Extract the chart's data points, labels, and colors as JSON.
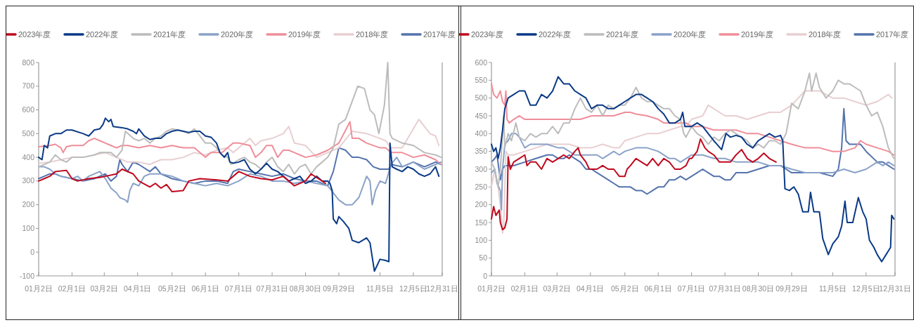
{
  "chart_data": [
    {
      "type": "line",
      "legend": "top",
      "grid": false,
      "marker": "none",
      "line_style": "solid",
      "xlim": [
        "--01-02",
        "--12-31"
      ],
      "xticks": [
        {
          "value": "--01-02",
          "label": "01月2日"
        },
        {
          "value": "--02-01",
          "label": "02月1日"
        },
        {
          "value": "--03-02",
          "label": "03月2日"
        },
        {
          "value": "--04-01",
          "label": "04月1日"
        },
        {
          "value": "--05-02",
          "label": "05月2日"
        },
        {
          "value": "--06-01",
          "label": "06月1日"
        },
        {
          "value": "--07-01",
          "label": "07月1日"
        },
        {
          "value": "--07-31",
          "label": "07月31日"
        },
        {
          "value": "--08-30",
          "label": "08月30日"
        },
        {
          "value": "--09-29",
          "label": "09月29日"
        },
        {
          "value": "--11-05",
          "label": "11月5日"
        },
        {
          "value": "--12-05",
          "label": "12月5日"
        },
        {
          "value": "--12-31",
          "label": "12月31日"
        }
      ],
      "ylim": [
        -100,
        800
      ],
      "yticks": [
        -100,
        0,
        100,
        200,
        300,
        400,
        500,
        600,
        700,
        800
      ],
      "series": [
        {
          "name": "2023年度",
          "color": "#c0081d",
          "x": [
            "--01-02",
            "--01-07",
            "--01-12",
            "--01-17",
            "--01-27",
            "--02-01",
            "--02-06",
            "--02-16",
            "--02-26",
            "--03-03",
            "--03-13",
            "--03-18",
            "--03-28",
            "--04-02",
            "--04-12",
            "--04-17",
            "--04-22",
            "--04-27",
            "--05-02",
            "--05-12",
            "--05-17",
            "--05-27",
            "--06-11",
            "--06-21",
            "--07-01",
            "--07-11",
            "--07-21",
            "--07-31",
            "--08-10",
            "--08-20",
            "--08-30",
            "--09-04",
            "--09-14",
            "--09-17"
          ],
          "values": [
            300,
            310,
            320,
            340,
            345,
            310,
            300,
            310,
            315,
            320,
            330,
            350,
            330,
            300,
            275,
            290,
            270,
            285,
            255,
            260,
            300,
            310,
            305,
            300,
            340,
            320,
            310,
            305,
            320,
            280,
            300,
            330,
            300,
            290
          ]
        },
        {
          "name": "2022年度",
          "color": "#0a3a86",
          "x": [
            "--01-02",
            "--01-05",
            "--01-07",
            "--01-10",
            "--01-12",
            "--01-17",
            "--01-22",
            "--01-27",
            "--02-01",
            "--02-11",
            "--02-16",
            "--02-21",
            "--02-26",
            "--03-01",
            "--03-03",
            "--03-06",
            "--03-08",
            "--03-10",
            "--03-18",
            "--03-23",
            "--03-28",
            "--03-31",
            "--04-02",
            "--04-07",
            "--04-12",
            "--04-17",
            "--04-22",
            "--04-27",
            "--05-02",
            "--05-07",
            "--05-12",
            "--05-17",
            "--05-22",
            "--05-27",
            "--06-01",
            "--06-06",
            "--06-11",
            "--06-14",
            "--06-18",
            "--06-21",
            "--06-23",
            "--06-26",
            "--07-01",
            "--07-06",
            "--07-11",
            "--07-16",
            "--07-21",
            "--07-26",
            "--07-31",
            "--08-05",
            "--08-10",
            "--08-15",
            "--08-20",
            "--08-25",
            "--08-30",
            "--09-04",
            "--09-09",
            "--09-14",
            "--09-19",
            "--09-21",
            "--09-23",
            "--09-24",
            "--09-27",
            "--09-29",
            "--10-03",
            "--10-08",
            "--10-11",
            "--10-17",
            "--10-24",
            "--10-27",
            "--10-31",
            "--11-05",
            "--11-10",
            "--11-13",
            "--11-14",
            "--11-16",
            "--11-20",
            "--11-25",
            "--11-30",
            "--12-05",
            "--12-10",
            "--12-15",
            "--12-20",
            "--12-25",
            "--12-28"
          ],
          "values": [
            400,
            390,
            450,
            440,
            490,
            500,
            500,
            515,
            515,
            500,
            490,
            515,
            520,
            540,
            565,
            550,
            560,
            530,
            525,
            520,
            510,
            500,
            520,
            490,
            475,
            480,
            480,
            500,
            510,
            515,
            510,
            505,
            510,
            510,
            490,
            485,
            460,
            420,
            400,
            420,
            380,
            375,
            380,
            390,
            350,
            330,
            350,
            375,
            350,
            340,
            320,
            300,
            310,
            320,
            290,
            300,
            320,
            300,
            300,
            290,
            260,
            140,
            120,
            150,
            130,
            100,
            50,
            40,
            60,
            40,
            -80,
            -30,
            -35,
            -40,
            460,
            360,
            350,
            340,
            360,
            350,
            330,
            320,
            330,
            360,
            320
          ]
        },
        {
          "name": "2021年度",
          "color": "#bcbcbc",
          "x": [
            "--01-02",
            "--01-12",
            "--01-17",
            "--01-22",
            "--01-27",
            "--02-01",
            "--02-11",
            "--02-21",
            "--02-26",
            "--03-08",
            "--03-13",
            "--03-18",
            "--03-21",
            "--03-28",
            "--04-02",
            "--04-07",
            "--04-12",
            "--04-17",
            "--04-22",
            "--04-27",
            "--05-02",
            "--05-12",
            "--05-17",
            "--05-22",
            "--05-27",
            "--06-01",
            "--06-06",
            "--06-11",
            "--06-16",
            "--06-21",
            "--06-24",
            "--07-01",
            "--07-06",
            "--07-11",
            "--07-16",
            "--07-21",
            "--07-26",
            "--07-31",
            "--08-05",
            "--08-10",
            "--08-15",
            "--08-20",
            "--08-25",
            "--08-30",
            "--09-04",
            "--09-09",
            "--09-14",
            "--09-19",
            "--09-24",
            "--09-29",
            "--10-05",
            "--10-16",
            "--10-22",
            "--10-27",
            "--10-31",
            "--11-04",
            "--11-09",
            "--11-12",
            "--11-14",
            "--11-16",
            "--11-25",
            "--12-05",
            "--12-15",
            "--12-25",
            "--12-30"
          ],
          "values": [
            360,
            380,
            410,
            390,
            380,
            400,
            400,
            410,
            420,
            420,
            400,
            430,
            510,
            480,
            470,
            480,
            460,
            480,
            490,
            510,
            520,
            510,
            500,
            520,
            490,
            460,
            460,
            440,
            410,
            400,
            370,
            390,
            400,
            380,
            370,
            350,
            380,
            400,
            360,
            340,
            370,
            330,
            360,
            370,
            330,
            360,
            380,
            400,
            440,
            540,
            560,
            700,
            690,
            600,
            580,
            500,
            620,
            800,
            500,
            480,
            460,
            450,
            420,
            410,
            400
          ]
        },
        {
          "name": "2020年度",
          "color": "#8aa2c8",
          "x": [
            "--01-02",
            "--01-07",
            "--01-12",
            "--01-17",
            "--01-22",
            "--01-27",
            "--02-01",
            "--02-06",
            "--02-11",
            "--02-16",
            "--02-26",
            "--03-03",
            "--03-08",
            "--03-13",
            "--03-16",
            "--03-21",
            "--03-23",
            "--03-25",
            "--03-28",
            "--04-02",
            "--04-07",
            "--04-12",
            "--04-22",
            "--05-02",
            "--05-12",
            "--05-22",
            "--06-01",
            "--06-11",
            "--06-21",
            "--07-01",
            "--07-11",
            "--07-21",
            "--07-31",
            "--08-10",
            "--08-20",
            "--08-30",
            "--09-09",
            "--09-19",
            "--09-24",
            "--09-29",
            "--10-05",
            "--10-11",
            "--10-17",
            "--10-24",
            "--10-27",
            "--10-29",
            "--11-01",
            "--11-05",
            "--11-10",
            "--11-15",
            "--11-20",
            "--11-25",
            "--12-05",
            "--12-15",
            "--12-25",
            "--12-30"
          ],
          "values": [
            360,
            360,
            350,
            330,
            320,
            315,
            310,
            320,
            300,
            320,
            340,
            310,
            270,
            250,
            230,
            220,
            210,
            260,
            290,
            280,
            320,
            330,
            330,
            320,
            300,
            290,
            280,
            290,
            280,
            300,
            330,
            320,
            300,
            300,
            290,
            300,
            290,
            280,
            250,
            220,
            200,
            200,
            230,
            320,
            300,
            200,
            260,
            300,
            290,
            370,
            400,
            360,
            380,
            350,
            370,
            380
          ]
        },
        {
          "name": "2019年度",
          "color": "#ef8e99",
          "x": [
            "--01-02",
            "--01-12",
            "--01-17",
            "--01-22",
            "--01-24",
            "--01-27",
            "--02-01",
            "--02-11",
            "--02-16",
            "--02-21",
            "--02-26",
            "--03-03",
            "--03-08",
            "--03-13",
            "--03-18",
            "--03-23",
            "--04-02",
            "--04-12",
            "--04-22",
            "--05-02",
            "--05-12",
            "--05-22",
            "--06-01",
            "--06-06",
            "--06-16",
            "--06-21",
            "--06-26",
            "--07-01",
            "--07-11",
            "--07-16",
            "--07-21",
            "--07-26",
            "--07-31",
            "--08-05",
            "--08-10",
            "--08-15",
            "--08-20",
            "--08-25",
            "--08-30",
            "--09-09",
            "--09-19",
            "--09-29",
            "--10-09",
            "--10-11",
            "--10-17",
            "--10-24",
            "--11-05",
            "--11-10",
            "--11-15",
            "--11-25",
            "--12-05",
            "--12-15",
            "--12-25",
            "--12-30"
          ],
          "values": [
            445,
            450,
            455,
            440,
            420,
            445,
            450,
            450,
            470,
            480,
            470,
            460,
            450,
            440,
            450,
            450,
            440,
            450,
            440,
            450,
            440,
            440,
            400,
            420,
            420,
            440,
            460,
            460,
            450,
            400,
            420,
            450,
            450,
            400,
            430,
            430,
            420,
            410,
            400,
            410,
            430,
            460,
            550,
            480,
            480,
            460,
            440,
            440,
            420,
            420,
            400,
            410,
            390,
            370
          ]
        },
        {
          "name": "2018年度",
          "color": "#e8cfd1",
          "x": [
            "--01-02",
            "--01-12",
            "--01-22",
            "--02-01",
            "--02-11",
            "--02-21",
            "--03-03",
            "--03-13",
            "--03-23",
            "--04-02",
            "--04-12",
            "--04-22",
            "--05-02",
            "--05-12",
            "--05-22",
            "--06-01",
            "--06-11",
            "--06-21",
            "--06-26",
            "--07-01",
            "--07-11",
            "--07-16",
            "--07-21",
            "--07-31",
            "--08-10",
            "--08-15",
            "--08-20",
            "--08-30",
            "--09-09",
            "--09-19",
            "--09-29",
            "--10-11",
            "--10-24",
            "--11-05",
            "--11-10",
            "--11-15",
            "--11-25",
            "--12-05",
            "--12-10",
            "--12-15",
            "--12-20",
            "--12-25",
            "--12-28"
          ],
          "values": [
            375,
            380,
            390,
            400,
            400,
            410,
            420,
            400,
            380,
            380,
            370,
            390,
            390,
            400,
            420,
            410,
            430,
            440,
            420,
            440,
            480,
            450,
            470,
            480,
            500,
            530,
            460,
            450,
            400,
            420,
            440,
            510,
            500,
            480,
            470,
            440,
            440,
            520,
            560,
            530,
            500,
            490,
            450
          ]
        },
        {
          "name": "2017年度",
          "color": "#5473ad",
          "x": [
            "--01-02",
            "--01-07",
            "--01-12",
            "--01-17",
            "--01-22",
            "--02-01",
            "--02-11",
            "--02-21",
            "--03-03",
            "--03-08",
            "--03-13",
            "--03-16",
            "--03-18",
            "--03-23",
            "--03-28",
            "--04-02",
            "--04-12",
            "--04-17",
            "--04-22",
            "--04-27",
            "--05-02",
            "--05-12",
            "--05-22",
            "--06-01",
            "--06-11",
            "--06-21",
            "--06-26",
            "--07-01",
            "--07-11",
            "--07-21",
            "--07-31",
            "--08-10",
            "--08-20",
            "--08-30",
            "--09-09",
            "--09-19",
            "--09-24",
            "--09-27",
            "--09-29",
            "--10-05",
            "--10-11",
            "--10-17",
            "--10-24",
            "--10-30",
            "--11-05",
            "--11-13",
            "--11-15",
            "--11-25",
            "--12-05",
            "--12-15",
            "--12-25",
            "--12-30"
          ],
          "values": [
            310,
            320,
            330,
            330,
            320,
            310,
            300,
            310,
            330,
            300,
            320,
            390,
            370,
            340,
            380,
            370,
            340,
            360,
            330,
            320,
            310,
            300,
            290,
            300,
            300,
            290,
            340,
            350,
            340,
            330,
            320,
            330,
            310,
            300,
            300,
            280,
            340,
            400,
            440,
            430,
            400,
            400,
            390,
            360,
            350,
            350,
            370,
            360,
            380,
            360,
            380,
            370
          ]
        }
      ]
    },
    {
      "type": "line",
      "legend": "top",
      "grid": false,
      "marker": "none",
      "line_style": "solid",
      "xlim": [
        "--01-02",
        "--12-31"
      ],
      "xticks": [
        {
          "value": "--01-02",
          "label": "01月2日"
        },
        {
          "value": "--02-01",
          "label": "02月1日"
        },
        {
          "value": "--03-02",
          "label": "03月2日"
        },
        {
          "value": "--04-01",
          "label": "04月1日"
        },
        {
          "value": "--05-02",
          "label": "05月2日"
        },
        {
          "value": "--06-01",
          "label": "06月1日"
        },
        {
          "value": "--07-01",
          "label": "07月1日"
        },
        {
          "value": "--07-31",
          "label": "07月31日"
        },
        {
          "value": "--08-30",
          "label": "08月30日"
        },
        {
          "value": "--09-29",
          "label": "09月29日"
        },
        {
          "value": "--11-05",
          "label": "11月5日"
        },
        {
          "value": "--12-05",
          "label": "12月5日"
        },
        {
          "value": "--12-31",
          "label": "12月31日"
        }
      ],
      "ylim": [
        0,
        600
      ],
      "yticks": [
        0,
        50,
        100,
        150,
        200,
        250,
        300,
        350,
        400,
        450,
        500,
        550,
        600
      ],
      "series": [
        {
          "name": "2023年度",
          "color": "#c0081d",
          "x": [
            "--01-02",
            "--01-04",
            "--01-06",
            "--01-09",
            "--01-10",
            "--01-12",
            "--01-14",
            "--01-16",
            "--01-17",
            "--01-19",
            "--01-22",
            "--01-27",
            "--02-01",
            "--02-03",
            "--02-06",
            "--02-11",
            "--02-16",
            "--02-21",
            "--02-26",
            "--03-03",
            "--03-08",
            "--03-13",
            "--03-18",
            "--03-21",
            "--03-23",
            "--03-28",
            "--03-31",
            "--04-07",
            "--04-12",
            "--04-17",
            "--04-22",
            "--04-27",
            "--05-02",
            "--05-04",
            "--05-07",
            "--05-12",
            "--05-17",
            "--05-22",
            "--05-27",
            "--06-01",
            "--06-06",
            "--06-11",
            "--06-16",
            "--06-21",
            "--06-26",
            "--06-29",
            "--07-01",
            "--07-06",
            "--07-09",
            "--07-13",
            "--07-16",
            "--07-21",
            "--07-26",
            "--07-31",
            "--08-05",
            "--08-10",
            "--08-15",
            "--08-20",
            "--08-25",
            "--08-30",
            "--09-04",
            "--09-09",
            "--09-15"
          ],
          "values": [
            160,
            195,
            170,
            185,
            150,
            130,
            135,
            160,
            335,
            300,
            320,
            330,
            340,
            310,
            320,
            320,
            300,
            330,
            320,
            330,
            340,
            330,
            350,
            360,
            340,
            320,
            300,
            300,
            310,
            300,
            300,
            280,
            280,
            300,
            310,
            330,
            320,
            310,
            330,
            310,
            330,
            320,
            300,
            300,
            310,
            330,
            330,
            350,
            385,
            360,
            350,
            340,
            320,
            320,
            320,
            340,
            355,
            330,
            320,
            330,
            345,
            330,
            320
          ]
        },
        {
          "name": "2022年度",
          "color": "#0a3a86",
          "x": [
            "--01-02",
            "--01-04",
            "--01-06",
            "--01-08",
            "--01-10",
            "--01-12",
            "--01-14",
            "--01-17",
            "--01-22",
            "--01-27",
            "--02-01",
            "--02-06",
            "--02-11",
            "--02-16",
            "--02-21",
            "--02-26",
            "--03-03",
            "--03-08",
            "--03-13",
            "--03-18",
            "--03-23",
            "--03-28",
            "--04-02",
            "--04-07",
            "--04-12",
            "--04-17",
            "--04-22",
            "--04-27",
            "--05-02",
            "--05-07",
            "--05-12",
            "--05-17",
            "--05-22",
            "--05-27",
            "--06-01",
            "--06-06",
            "--06-11",
            "--06-16",
            "--06-21",
            "--06-23",
            "--06-25",
            "--07-01",
            "--07-06",
            "--07-11",
            "--07-16",
            "--07-21",
            "--07-28",
            "--08-01",
            "--08-05",
            "--08-10",
            "--08-15",
            "--08-20",
            "--08-25",
            "--08-30",
            "--09-04",
            "--09-09",
            "--09-14",
            "--09-19",
            "--09-21",
            "--09-23",
            "--09-27",
            "--10-01",
            "--10-05",
            "--10-09",
            "--10-14",
            "--10-16",
            "--10-19",
            "--10-24",
            "--10-27",
            "--11-01",
            "--11-05",
            "--11-10",
            "--11-13",
            "--11-16",
            "--11-18",
            "--11-23",
            "--11-28",
            "--12-02",
            "--12-05",
            "--12-08",
            "--12-12",
            "--12-15",
            "--12-19",
            "--12-23",
            "--12-25",
            "--12-27",
            "--12-28",
            "--12-30"
          ],
          "values": [
            370,
            350,
            360,
            330,
            360,
            410,
            470,
            500,
            510,
            520,
            520,
            480,
            480,
            510,
            500,
            520,
            560,
            540,
            540,
            520,
            510,
            500,
            470,
            480,
            480,
            470,
            470,
            480,
            490,
            500,
            510,
            510,
            500,
            490,
            470,
            455,
            430,
            430,
            440,
            460,
            420,
            420,
            430,
            420,
            400,
            380,
            355,
            400,
            390,
            395,
            390,
            370,
            360,
            380,
            390,
            400,
            390,
            395,
            380,
            245,
            240,
            250,
            230,
            180,
            180,
            235,
            180,
            180,
            105,
            60,
            90,
            110,
            140,
            210,
            150,
            150,
            220,
            180,
            160,
            100,
            80,
            60,
            40,
            60,
            70,
            80,
            170,
            160
          ]
        },
        {
          "name": "2021年度",
          "color": "#bcbcbc",
          "x": [
            "--01-02",
            "--01-05",
            "--01-08",
            "--01-10",
            "--01-13",
            "--01-14",
            "--01-17",
            "--01-20",
            "--01-24",
            "--01-27",
            "--02-01",
            "--02-06",
            "--02-11",
            "--02-16",
            "--02-21",
            "--02-26",
            "--03-03",
            "--03-08",
            "--03-13",
            "--03-18",
            "--03-23",
            "--03-28",
            "--04-02",
            "--04-07",
            "--04-12",
            "--04-17",
            "--04-22",
            "--04-27",
            "--05-02",
            "--05-07",
            "--05-12",
            "--05-17",
            "--05-22",
            "--05-27",
            "--06-01",
            "--06-06",
            "--06-11",
            "--06-16",
            "--06-21",
            "--06-24",
            "--06-26",
            "--07-01",
            "--07-06",
            "--07-11",
            "--07-16",
            "--07-21",
            "--07-26",
            "--07-31",
            "--08-05",
            "--08-10",
            "--08-15",
            "--08-20",
            "--08-25",
            "--08-30",
            "--09-04",
            "--09-09",
            "--09-14",
            "--09-19",
            "--09-24",
            "--09-29",
            "--10-05",
            "--10-11",
            "--10-15",
            "--10-17",
            "--10-21",
            "--10-24",
            "--10-30",
            "--11-05",
            "--11-10",
            "--11-15",
            "--11-20",
            "--11-25",
            "--11-30",
            "--12-05",
            "--12-10",
            "--12-15",
            "--12-20",
            "--12-25",
            "--12-30"
          ],
          "values": [
            320,
            300,
            250,
            300,
            450,
            360,
            400,
            380,
            430,
            390,
            380,
            400,
            390,
            400,
            400,
            420,
            400,
            430,
            430,
            470,
            500,
            470,
            460,
            480,
            450,
            480,
            470,
            480,
            480,
            500,
            530,
            500,
            490,
            490,
            480,
            470,
            470,
            450,
            440,
            400,
            390,
            420,
            400,
            390,
            370,
            390,
            380,
            400,
            410,
            400,
            390,
            380,
            360,
            370,
            360,
            380,
            380,
            370,
            400,
            485,
            470,
            520,
            570,
            520,
            570,
            530,
            500,
            520,
            550,
            540,
            540,
            530,
            520,
            480,
            450,
            460,
            420,
            360,
            330
          ]
        },
        {
          "name": "2020年度",
          "color": "#8aa2c8",
          "x": [
            "--01-02",
            "--01-05",
            "--01-07",
            "--01-10",
            "--01-11",
            "--01-12",
            "--01-14",
            "--01-17",
            "--01-20",
            "--01-24",
            "--01-27",
            "--02-01",
            "--02-06",
            "--02-11",
            "--02-21",
            "--03-03",
            "--03-08",
            "--03-13",
            "--03-18",
            "--03-23",
            "--04-02",
            "--04-07",
            "--04-12",
            "--04-22",
            "--04-27",
            "--05-02",
            "--05-12",
            "--05-22",
            "--06-01",
            "--06-11",
            "--06-16",
            "--06-21",
            "--06-26",
            "--07-01",
            "--07-11",
            "--07-21",
            "--07-31",
            "--08-10",
            "--08-20",
            "--08-30",
            "--09-09",
            "--09-19",
            "--09-29",
            "--10-11",
            "--10-24",
            "--11-05",
            "--11-15",
            "--11-25",
            "--12-05",
            "--12-15",
            "--12-20",
            "--12-25",
            "--12-30"
          ],
          "values": [
            290,
            300,
            260,
            240,
            185,
            300,
            370,
            380,
            400,
            400,
            390,
            360,
            370,
            370,
            370,
            360,
            360,
            350,
            340,
            340,
            340,
            340,
            330,
            350,
            340,
            350,
            360,
            360,
            350,
            330,
            330,
            320,
            330,
            340,
            340,
            330,
            330,
            320,
            320,
            320,
            310,
            310,
            300,
            290,
            290,
            290,
            300,
            290,
            300,
            320,
            310,
            320,
            310
          ]
        },
        {
          "name": "2019年度",
          "color": "#ef8e99",
          "x": [
            "--01-02",
            "--01-04",
            "--01-07",
            "--01-10",
            "--01-12",
            "--01-14",
            "--01-15",
            "--01-16",
            "--01-18",
            "--01-22",
            "--01-27",
            "--02-01",
            "--02-11",
            "--02-21",
            "--03-03",
            "--03-13",
            "--03-23",
            "--04-02",
            "--04-12",
            "--04-22",
            "--05-02",
            "--05-07",
            "--05-12",
            "--05-22",
            "--06-01",
            "--06-06",
            "--06-11",
            "--06-21",
            "--06-26",
            "--07-01",
            "--07-11",
            "--07-21",
            "--07-31",
            "--08-10",
            "--08-20",
            "--08-30",
            "--09-09",
            "--09-19",
            "--09-29",
            "--10-11",
            "--10-24",
            "--11-05",
            "--11-15",
            "--11-25",
            "--11-30",
            "--12-05",
            "--12-15",
            "--12-25",
            "--12-30"
          ],
          "values": [
            540,
            510,
            500,
            520,
            490,
            480,
            520,
            440,
            430,
            440,
            450,
            440,
            440,
            440,
            440,
            440,
            440,
            450,
            450,
            450,
            460,
            460,
            455,
            450,
            440,
            430,
            430,
            430,
            430,
            420,
            420,
            410,
            410,
            410,
            400,
            400,
            390,
            380,
            370,
            360,
            360,
            350,
            350,
            360,
            380,
            370,
            360,
            350,
            340
          ]
        },
        {
          "name": "2018年度",
          "color": "#e8cfd1",
          "x": [
            "--01-02",
            "--01-05",
            "--01-08",
            "--01-10",
            "--01-12",
            "--01-13",
            "--01-15",
            "--01-17",
            "--01-22",
            "--02-01",
            "--02-11",
            "--02-21",
            "--03-03",
            "--03-13",
            "--03-23",
            "--04-02",
            "--04-12",
            "--04-22",
            "--04-27",
            "--05-02",
            "--05-12",
            "--05-22",
            "--06-01",
            "--06-11",
            "--06-21",
            "--06-26",
            "--07-01",
            "--07-11",
            "--07-16",
            "--07-21",
            "--07-31",
            "--08-10",
            "--08-20",
            "--08-30",
            "--09-09",
            "--09-19",
            "--09-24",
            "--09-29",
            "--10-05",
            "--10-11",
            "--10-24",
            "--11-05",
            "--11-15",
            "--11-25",
            "--12-05",
            "--12-15",
            "--12-25",
            "--12-28"
          ],
          "values": [
            250,
            300,
            250,
            200,
            120,
            140,
            350,
            340,
            340,
            350,
            360,
            370,
            370,
            370,
            360,
            360,
            370,
            360,
            360,
            380,
            390,
            400,
            400,
            410,
            420,
            420,
            440,
            450,
            480,
            470,
            450,
            450,
            440,
            450,
            460,
            460,
            470,
            480,
            500,
            520,
            520,
            500,
            500,
            490,
            480,
            490,
            510,
            500
          ]
        },
        {
          "name": "2017年度",
          "color": "#5473ad",
          "x": [
            "--01-02",
            "--01-05",
            "--01-07",
            "--01-10",
            "--01-12",
            "--01-14",
            "--01-17",
            "--01-22",
            "--02-01",
            "--02-11",
            "--02-21",
            "--02-26",
            "--03-03",
            "--03-08",
            "--03-13",
            "--03-18",
            "--03-23",
            "--03-28",
            "--04-02",
            "--04-07",
            "--04-12",
            "--04-17",
            "--04-22",
            "--04-27",
            "--05-02",
            "--05-07",
            "--05-12",
            "--05-17",
            "--05-22",
            "--05-27",
            "--06-01",
            "--06-06",
            "--06-11",
            "--06-16",
            "--06-21",
            "--06-26",
            "--07-01",
            "--07-06",
            "--07-11",
            "--07-16",
            "--07-21",
            "--07-26",
            "--07-31",
            "--08-05",
            "--08-10",
            "--08-20",
            "--08-30",
            "--09-09",
            "--09-19",
            "--09-24",
            "--09-29",
            "--10-11",
            "--10-24",
            "--11-05",
            "--11-10",
            "--11-13",
            "--11-15",
            "--11-17",
            "--11-20",
            "--11-25",
            "--11-30",
            "--12-05",
            "--12-15",
            "--12-20",
            "--12-25",
            "--12-30"
          ],
          "values": [
            320,
            330,
            340,
            270,
            300,
            310,
            310,
            310,
            320,
            330,
            340,
            340,
            330,
            330,
            340,
            330,
            320,
            300,
            300,
            290,
            280,
            270,
            260,
            250,
            250,
            250,
            240,
            240,
            230,
            240,
            250,
            250,
            270,
            270,
            280,
            270,
            280,
            290,
            300,
            290,
            280,
            280,
            270,
            270,
            290,
            290,
            300,
            310,
            310,
            300,
            290,
            290,
            290,
            280,
            300,
            360,
            470,
            380,
            370,
            370,
            370,
            350,
            320,
            320,
            310,
            300
          ]
        }
      ]
    }
  ]
}
